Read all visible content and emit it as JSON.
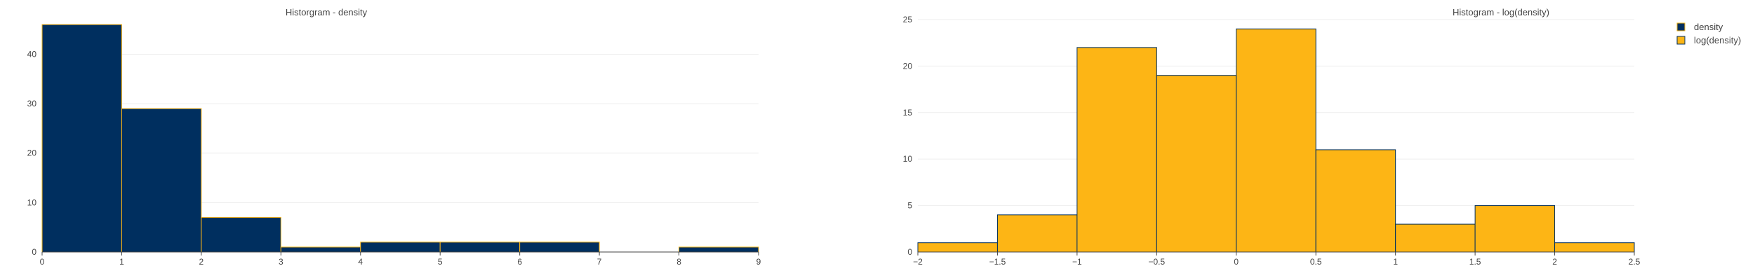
{
  "colors": {
    "density": "#002F5F",
    "log_density": "#FDB515",
    "density_edge": "#FDB515",
    "log_density_edge": "#002F5F",
    "grid": "#eeeeee",
    "axis": "#444444",
    "text": "#444444",
    "background": "#ffffff"
  },
  "legend": {
    "placement": "top-right",
    "items": [
      {
        "label": "density",
        "color": "#002F5F",
        "edge": "#FDB515"
      },
      {
        "label": "log(density)",
        "color": "#FDB515",
        "edge": "#002F5F"
      }
    ]
  },
  "chart_data": [
    {
      "type": "bar",
      "title": "Historgram - density",
      "xlabel": "",
      "ylabel": "",
      "grid": true,
      "bar_gap": 0,
      "xlim": [
        0,
        9
      ],
      "ylim": [
        0,
        47
      ],
      "xticks": [
        {
          "value": 0,
          "label": "0"
        },
        {
          "value": 1,
          "label": "1"
        },
        {
          "value": 2,
          "label": "2"
        },
        {
          "value": 3,
          "label": "3"
        },
        {
          "value": 4,
          "label": "4"
        },
        {
          "value": 5,
          "label": "5"
        },
        {
          "value": 6,
          "label": "6"
        },
        {
          "value": 7,
          "label": "7"
        },
        {
          "value": 8,
          "label": "8"
        },
        {
          "value": 9,
          "label": "9"
        }
      ],
      "yticks": [
        {
          "value": 0,
          "label": "0"
        },
        {
          "value": 10,
          "label": "10"
        },
        {
          "value": 20,
          "label": "20"
        },
        {
          "value": 30,
          "label": "30"
        },
        {
          "value": 40,
          "label": "40"
        }
      ],
      "series": [
        {
          "name": "density",
          "color": "#002F5F",
          "edge": "#FDB515",
          "bins": [
            {
              "x0": 0,
              "x1": 1,
              "count": 46
            },
            {
              "x0": 1,
              "x1": 2,
              "count": 29
            },
            {
              "x0": 2,
              "x1": 3,
              "count": 7
            },
            {
              "x0": 3,
              "x1": 4,
              "count": 1
            },
            {
              "x0": 4,
              "x1": 5,
              "count": 2
            },
            {
              "x0": 5,
              "x1": 6,
              "count": 2
            },
            {
              "x0": 6,
              "x1": 7,
              "count": 2
            },
            {
              "x0": 7,
              "x1": 8,
              "count": 0
            },
            {
              "x0": 8,
              "x1": 9,
              "count": 1
            }
          ]
        }
      ]
    },
    {
      "type": "bar",
      "title": "Histogram - log(density)",
      "xlabel": "",
      "ylabel": "",
      "grid": true,
      "bar_gap": 0,
      "xlim": [
        -2,
        2.5
      ],
      "ylim": [
        0,
        25
      ],
      "xticks": [
        {
          "value": -2,
          "label": "−2"
        },
        {
          "value": -1.5,
          "label": "−1.5"
        },
        {
          "value": -1,
          "label": "−1"
        },
        {
          "value": -0.5,
          "label": "−0.5"
        },
        {
          "value": 0,
          "label": "0"
        },
        {
          "value": 0.5,
          "label": "0.5"
        },
        {
          "value": 1,
          "label": "1"
        },
        {
          "value": 1.5,
          "label": "1.5"
        },
        {
          "value": 2,
          "label": "2"
        },
        {
          "value": 2.5,
          "label": "2.5"
        }
      ],
      "yticks": [
        {
          "value": 0,
          "label": "0"
        },
        {
          "value": 5,
          "label": "5"
        },
        {
          "value": 10,
          "label": "10"
        },
        {
          "value": 15,
          "label": "15"
        },
        {
          "value": 20,
          "label": "20"
        },
        {
          "value": 25,
          "label": "25"
        }
      ],
      "series": [
        {
          "name": "log(density)",
          "color": "#FDB515",
          "edge": "#002F5F",
          "bins": [
            {
              "x0": -2,
              "x1": -1.5,
              "count": 1
            },
            {
              "x0": -1.5,
              "x1": -1,
              "count": 4
            },
            {
              "x0": -1,
              "x1": -0.5,
              "count": 22
            },
            {
              "x0": -0.5,
              "x1": 0,
              "count": 19
            },
            {
              "x0": 0,
              "x1": 0.5,
              "count": 24
            },
            {
              "x0": 0.5,
              "x1": 1,
              "count": 11
            },
            {
              "x0": 1,
              "x1": 1.5,
              "count": 3
            },
            {
              "x0": 1.5,
              "x1": 2,
              "count": 5
            },
            {
              "x0": 2,
              "x1": 2.5,
              "count": 1
            }
          ]
        }
      ]
    }
  ]
}
